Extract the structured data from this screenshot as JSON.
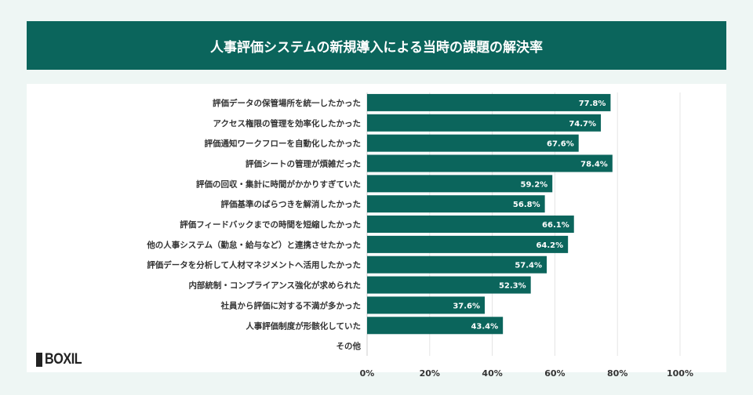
{
  "chart_data": {
    "type": "bar",
    "orientation": "horizontal",
    "title": "人事評価システムの新規導入による当時の課題の解決率",
    "categories": [
      "評価データの保管場所を統一したかった",
      "アクセス権限の管理を効率化したかった",
      "評価通知ワークフローを自動化したかった",
      "評価シートの管理が煩雑だった",
      "評価の回収・集計に時間がかかりすぎていた",
      "評価基準のばらつきを解消したかった",
      "評価フィードバックまでの時間を短縮したかった",
      "他の人事システム（勤怠・給与など）と連携させたかった",
      "評価データを分析して人材マネジメントへ活用したかった",
      "内部統制・コンプライアンス強化が求められた",
      "社員から評価に対する不満が多かった",
      "人事評価制度が形骸化していた",
      "その他"
    ],
    "values": [
      77.8,
      74.7,
      67.6,
      78.4,
      59.2,
      56.8,
      66.1,
      64.2,
      57.4,
      52.3,
      37.6,
      43.4,
      null
    ],
    "value_labels": [
      "77.8%",
      "74.7%",
      "67.6%",
      "78.4%",
      "59.2%",
      "56.8%",
      "66.1%",
      "64.2%",
      "57.4%",
      "52.3%",
      "37.6%",
      "43.4%",
      ""
    ],
    "xlim": [
      0,
      100
    ],
    "xticks": [
      "0%",
      "20%",
      "40%",
      "60%",
      "80%",
      "100%"
    ],
    "grid": true,
    "bar_color": "#0b655c"
  },
  "logo": {
    "text": "BOXIL"
  }
}
